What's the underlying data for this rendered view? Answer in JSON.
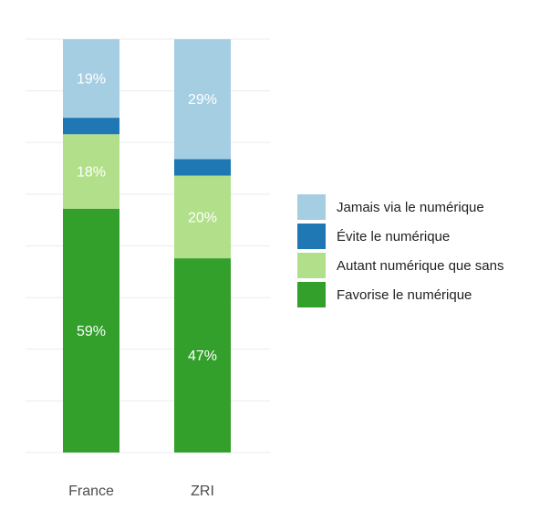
{
  "chart_data": {
    "type": "bar",
    "stacked": true,
    "categories": [
      "France",
      "ZRI"
    ],
    "series": [
      {
        "name": "Favorise le numérique",
        "color": "#33a02c",
        "values": [
          59,
          47
        ],
        "labels": [
          "59%",
          "47%"
        ]
      },
      {
        "name": "Autant numérique que sans",
        "color": "#b2df8a",
        "values": [
          18,
          20
        ],
        "labels": [
          "18%",
          "20%"
        ]
      },
      {
        "name": "Évite le numérique",
        "color": "#1f78b4",
        "values": [
          4,
          4
        ],
        "labels": [
          "",
          ""
        ]
      },
      {
        "name": "Jamais via le numérique",
        "color": "#a6cee3",
        "values": [
          19,
          29
        ],
        "labels": [
          "19%",
          "29%"
        ]
      }
    ],
    "ylim": [
      0,
      100
    ],
    "grid": true,
    "legend_position": "right"
  }
}
